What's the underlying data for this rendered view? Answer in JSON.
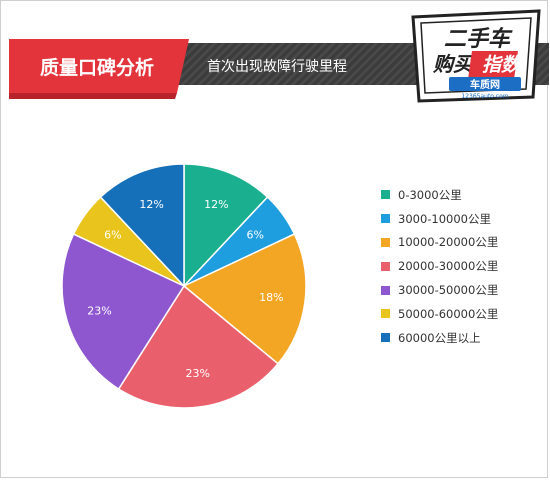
{
  "header": {
    "category": "质量口碑分析",
    "subtitle": "首次出现故障行驶里程",
    "badge_line1": "二手车",
    "badge_line2a": "购买",
    "badge_line2b": "指数",
    "site_name": "车质网",
    "site_url": "12365auto.com"
  },
  "chart_data": {
    "type": "pie",
    "title": "首次出现故障行驶里程",
    "categories": [
      "0-3000公里",
      "3000-10000公里",
      "10000-20000公里",
      "20000-30000公里",
      "30000-50000公里",
      "50000-60000公里",
      "60000公里以上"
    ],
    "values": [
      12,
      6,
      18,
      23,
      23,
      6,
      12
    ],
    "labels": [
      "12%",
      "6%",
      "18%",
      "23%",
      "23%",
      "6%",
      "12%"
    ],
    "colors": [
      "#1aaf8e",
      "#1e9ddf",
      "#f3a524",
      "#ea5f6c",
      "#8e57d0",
      "#e9c41c",
      "#1670b9"
    ],
    "legend_position": "right"
  },
  "colors": {
    "banner_red": "#e3333b",
    "banner_dark": "#3a3a3a",
    "badge_blue": "#1c6ec4"
  }
}
